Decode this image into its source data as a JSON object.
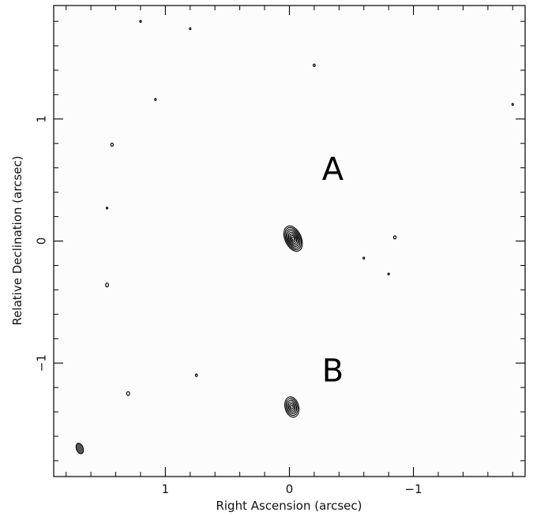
{
  "chart_data": {
    "type": "contour",
    "xlabel": "Right Ascension  (arcsec)",
    "ylabel": "Relative Declination  (arcsec)",
    "xlim": [
      1.9,
      -1.9
    ],
    "ylim": [
      -1.93,
      1.93
    ],
    "x_ticks": [
      {
        "value": 1,
        "label": "1"
      },
      {
        "value": 0,
        "label": "0"
      },
      {
        "value": -1,
        "label": "−1"
      }
    ],
    "y_ticks": [
      {
        "value": 1,
        "label": "1"
      },
      {
        "value": 0,
        "label": "0"
      },
      {
        "value": -1,
        "label": "−1"
      }
    ],
    "minor_tick_step": 0.2,
    "grid": false,
    "labels": [
      {
        "text": "A",
        "x": -0.35,
        "y": 0.5
      },
      {
        "text": "B",
        "x": -0.35,
        "y": -1.15
      }
    ],
    "sources": [
      {
        "x": -0.03,
        "y": 0.02,
        "rx": 0.065,
        "ry": 0.11,
        "angle": -25,
        "levels": 8
      },
      {
        "x": -0.02,
        "y": -1.36,
        "rx": 0.055,
        "ry": 0.085,
        "angle": -15,
        "levels": 6
      }
    ],
    "small_features": [
      {
        "x": 1.2,
        "y": 1.8,
        "size": 0.006
      },
      {
        "x": 0.8,
        "y": 1.74,
        "size": 0.006
      },
      {
        "x": -0.2,
        "y": 1.44,
        "size": 0.008
      },
      {
        "x": 1.08,
        "y": 1.16,
        "size": 0.006
      },
      {
        "x": -1.8,
        "y": 1.12,
        "size": 0.006
      },
      {
        "x": 1.43,
        "y": 0.79,
        "size": 0.01
      },
      {
        "x": 1.47,
        "y": 0.27,
        "size": 0.005
      },
      {
        "x": -0.85,
        "y": 0.03,
        "size": 0.01
      },
      {
        "x": -0.6,
        "y": -0.14,
        "size": 0.005
      },
      {
        "x": -0.8,
        "y": -0.27,
        "size": 0.005
      },
      {
        "x": 1.47,
        "y": -0.36,
        "size": 0.012
      },
      {
        "x": 0.75,
        "y": -1.1,
        "size": 0.008
      },
      {
        "x": 1.3,
        "y": -1.25,
        "size": 0.012
      }
    ],
    "beam": {
      "x": 1.69,
      "y": -1.7,
      "rx": 0.028,
      "ry": 0.045,
      "angle": -20
    }
  }
}
